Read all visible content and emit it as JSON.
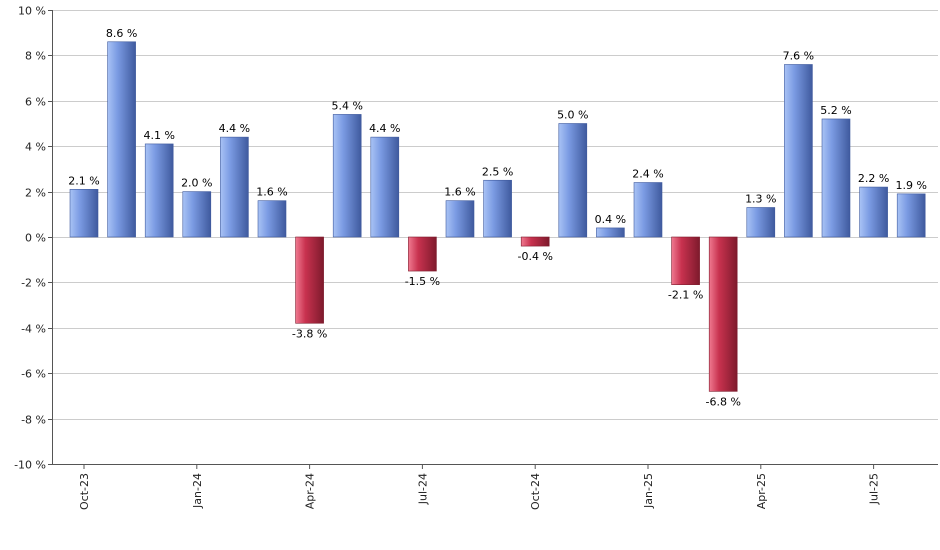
{
  "chart_data": {
    "type": "bar",
    "categories": [
      "Oct-23",
      "Nov-23",
      "Dec-23",
      "Jan-24",
      "Feb-24",
      "Mar-24",
      "Apr-24",
      "May-24",
      "Jun-24",
      "Jul-24",
      "Aug-24",
      "Sep-24",
      "Oct-24",
      "Nov-24",
      "Dec-24",
      "Jan-25",
      "Feb-25",
      "Mar-25",
      "Apr-25",
      "May-25",
      "Jun-25",
      "Jul-25",
      "Aug-25"
    ],
    "values": [
      2.1,
      8.6,
      4.1,
      2.0,
      4.4,
      1.6,
      -3.8,
      5.4,
      4.4,
      -1.5,
      1.6,
      2.5,
      -0.4,
      5.0,
      0.4,
      2.4,
      -2.1,
      -6.8,
      1.3,
      7.6,
      5.2,
      2.2,
      1.9
    ],
    "data_labels": [
      "2.1 %",
      "8.6 %",
      "4.1 %",
      "2.0 %",
      "4.4 %",
      "1.6 %",
      "-3.8 %",
      "5.4 %",
      "4.4 %",
      "-1.5 %",
      "1.6 %",
      "2.5 %",
      "-0.4 %",
      "5.0 %",
      "0.4 %",
      "2.4 %",
      "-2.1 %",
      "-6.8 %",
      "1.3 %",
      "7.6 %",
      "5.2 %",
      "2.2 %",
      "1.9 %"
    ],
    "x_tick_labels": [
      {
        "category": "Oct-23",
        "label": "Oct-23"
      },
      {
        "category": "Jan-24",
        "label": "Jan-24"
      },
      {
        "category": "Apr-24",
        "label": "Apr-24"
      },
      {
        "category": "Jul-24",
        "label": "Jul-24"
      },
      {
        "category": "Oct-24",
        "label": "Oct-24"
      },
      {
        "category": "Jan-25",
        "label": "Jan-25"
      },
      {
        "category": "Apr-25",
        "label": "Apr-25"
      },
      {
        "category": "Jul-25",
        "label": "Jul-25"
      }
    ],
    "y_ticks": [
      10,
      8,
      6,
      4,
      2,
      0,
      -2,
      -4,
      -6,
      -8,
      -10
    ],
    "y_tick_labels": [
      "10 %",
      "8 %",
      "6 %",
      "4 %",
      "2 %",
      "0 %",
      "-2 %",
      "-4 %",
      "-6 %",
      "-8 %",
      "-10 %"
    ],
    "ylim": [
      -10,
      10
    ],
    "grid": true,
    "legend": "none",
    "title": "",
    "xlabel": "",
    "ylabel": "",
    "colors": {
      "positive_light": "#a9c3f5",
      "positive_mid": "#7b9be3",
      "positive_dark": "#3f5a9e",
      "negative_light": "#f07a90",
      "negative_mid": "#c8324f",
      "negative_dark": "#7e1a2c",
      "grid": "#cccccc",
      "axis": "#555555"
    }
  }
}
